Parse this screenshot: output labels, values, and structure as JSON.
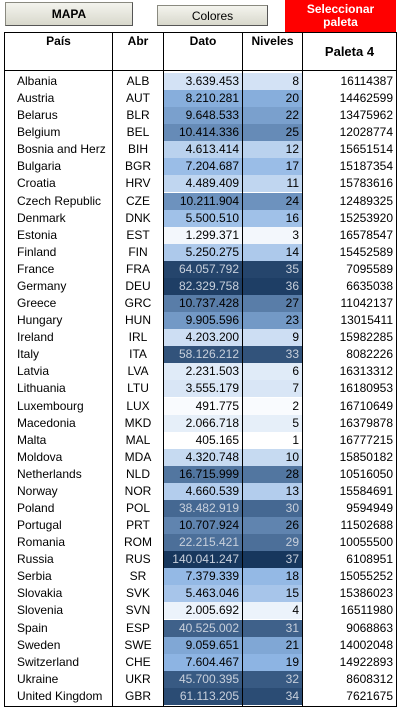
{
  "buttons": {
    "mapa": "MAPA",
    "colores": "Colores",
    "seleccionar": "Seleccionar paleta"
  },
  "table": {
    "header": [
      "País",
      "Abr",
      "Dato",
      "Niveles",
      "Paleta 4"
    ],
    "rows": [
      [
        "Albania",
        "ALB",
        "3.639.453",
        8,
        16114387
      ],
      [
        "Austria",
        "AUT",
        "8.210.281",
        20,
        14462599
      ],
      [
        "Belarus",
        "BLR",
        "9.648.533",
        22,
        13475962
      ],
      [
        "Belgium",
        "BEL",
        "10.414.336",
        25,
        12028774
      ],
      [
        "Bosnia and Herz",
        "BIH",
        "4.613.414",
        12,
        15651514
      ],
      [
        "Bulgaria",
        "BGR",
        "7.204.687",
        17,
        15187354
      ],
      [
        "Croatia",
        "HRV",
        "4.489.409",
        11,
        15783616
      ],
      [
        "Czech Republic",
        "CZE",
        "10.211.904",
        24,
        12489325
      ],
      [
        "Denmark",
        "DNK",
        "5.500.510",
        16,
        15253920
      ],
      [
        "Estonia",
        "EST",
        "1.299.371",
        3,
        16578547
      ],
      [
        "Finland",
        "FIN",
        "5.250.275",
        14,
        15452589
      ],
      [
        "France",
        "FRA",
        "64.057.792",
        35,
        7095589
      ],
      [
        "Germany",
        "DEU",
        "82.329.758",
        36,
        6635038
      ],
      [
        "Greece",
        "GRC",
        "10.737.428",
        27,
        11042137
      ],
      [
        "Hungary",
        "HUN",
        "9.905.596",
        23,
        13015411
      ],
      [
        "Ireland",
        "IRL",
        "4.203.200",
        9,
        15982285
      ],
      [
        "Italy",
        "ITA",
        "58.126.212",
        33,
        8082226
      ],
      [
        "Latvia",
        "LVA",
        "2.231.503",
        6,
        16313312
      ],
      [
        "Lithuania",
        "LTU",
        "3.555.179",
        7,
        16180953
      ],
      [
        "Luxembourg",
        "LUX",
        "491.775",
        2,
        16710649
      ],
      [
        "Macedonia",
        "MKD",
        "2.066.718",
        5,
        16379878
      ],
      [
        "Malta",
        "MAL",
        "405.165",
        1,
        16777215
      ],
      [
        "Moldova",
        "MDA",
        "4.320.748",
        10,
        15850182
      ],
      [
        "Netherlands",
        "NLD",
        "16.715.999",
        28,
        10516050
      ],
      [
        "Norway",
        "NOR",
        "4.660.539",
        13,
        15584691
      ],
      [
        "Poland",
        "POL",
        "38.482.919",
        30,
        9594949
      ],
      [
        "Portugal",
        "PRT",
        "10.707.924",
        26,
        11502688
      ],
      [
        "Romania",
        "ROM",
        "22.215.421",
        29,
        10055500
      ],
      [
        "Russia",
        "RUS",
        "140.041.247",
        37,
        6108951
      ],
      [
        "Serbia",
        "SR",
        "7.379.339",
        18,
        15055252
      ],
      [
        "Slovakia",
        "SVK",
        "5.463.046",
        15,
        15386023
      ],
      [
        "Slovenia",
        "SVN",
        "2.005.692",
        4,
        16511980
      ],
      [
        "Spain",
        "ESP",
        "40.525.002",
        31,
        9068863
      ],
      [
        "Sweden",
        "SWE",
        "9.059.651",
        21,
        14002048
      ],
      [
        "Switzerland",
        "CHE",
        "7.604.467",
        19,
        14922893
      ],
      [
        "Ukraine",
        "UKR",
        "45.700.395",
        32,
        8608312
      ],
      [
        "United Kingdom",
        "GBR",
        "61.113.205",
        34,
        7621675
      ]
    ]
  }
}
